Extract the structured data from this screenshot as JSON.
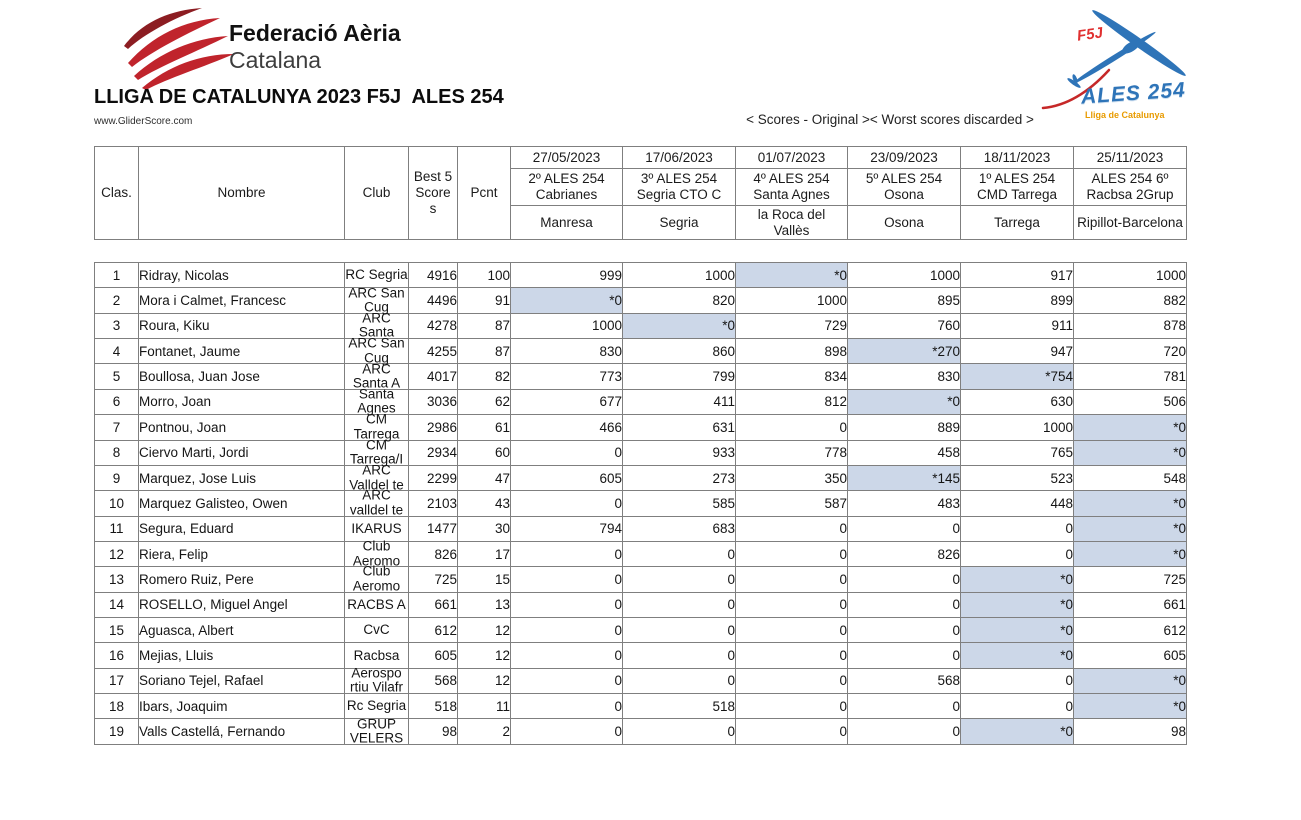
{
  "header": {
    "federation_line1": "Federació Aèria",
    "federation_line2": "Catalana",
    "title": "LLIGA DE CATALUNYA 2023 F5J  ALES 254",
    "website": "www.GliderScore.com",
    "scores_note": "< Scores - Original >< Worst scores discarded >"
  },
  "logo_right": {
    "f5j": "F5J",
    "ales": "ALES 254",
    "subtitle": "Lliga de Catalunya"
  },
  "columns": {
    "clas": "Clas.",
    "nombre": "Nombre",
    "club": "Club",
    "best5": "Best 5 Scores",
    "pcnt": "Pcnt"
  },
  "colors": {
    "discarded_highlight": "#ccd7e8",
    "table_border": "#7f7f7f",
    "logo_red": "#c0242c",
    "glider_blue": "#2e74b8",
    "subtitle_orange": "#e89b00"
  },
  "events": [
    {
      "date": "27/05/2023",
      "name": "2º ALES 254 Cabrianes",
      "location": "Manresa"
    },
    {
      "date": "17/06/2023",
      "name": "3º ALES 254 Segria CTO C",
      "location": "Segria"
    },
    {
      "date": "01/07/2023",
      "name": "4º ALES 254 Santa Agnes",
      "location": "la Roca del Vallès"
    },
    {
      "date": "23/09/2023",
      "name": "5º ALES 254 Osona",
      "location": "Osona"
    },
    {
      "date": "18/11/2023",
      "name": "1º ALES 254 CMD Tarrega",
      "location": "Tarrega"
    },
    {
      "date": "25/11/2023",
      "name": "ALES 254 6º Racbsa 2Grup",
      "location": "Ripillot-Barcelona"
    }
  ],
  "rows": [
    {
      "clas": "1",
      "nombre": "Ridray, Nicolas",
      "club": "RC Segria",
      "best5": "4916",
      "pcnt": "100",
      "scores": [
        {
          "v": "999",
          "d": false
        },
        {
          "v": "1000",
          "d": false
        },
        {
          "v": "*0",
          "d": true
        },
        {
          "v": "1000",
          "d": false
        },
        {
          "v": "917",
          "d": false
        },
        {
          "v": "1000",
          "d": false
        }
      ]
    },
    {
      "clas": "2",
      "nombre": "Mora i Calmet, Francesc",
      "club": "ARC San Cug",
      "best5": "4496",
      "pcnt": "91",
      "scores": [
        {
          "v": "*0",
          "d": true
        },
        {
          "v": "820",
          "d": false
        },
        {
          "v": "1000",
          "d": false
        },
        {
          "v": "895",
          "d": false
        },
        {
          "v": "899",
          "d": false
        },
        {
          "v": "882",
          "d": false
        }
      ]
    },
    {
      "clas": "3",
      "nombre": "Roura, Kiku",
      "club": "ARC Santa",
      "best5": "4278",
      "pcnt": "87",
      "scores": [
        {
          "v": "1000",
          "d": false
        },
        {
          "v": "*0",
          "d": true
        },
        {
          "v": "729",
          "d": false
        },
        {
          "v": "760",
          "d": false
        },
        {
          "v": "911",
          "d": false
        },
        {
          "v": "878",
          "d": false
        }
      ]
    },
    {
      "clas": "4",
      "nombre": "Fontanet, Jaume",
      "club": "ARC San Cug",
      "best5": "4255",
      "pcnt": "87",
      "scores": [
        {
          "v": "830",
          "d": false
        },
        {
          "v": "860",
          "d": false
        },
        {
          "v": "898",
          "d": false
        },
        {
          "v": "*270",
          "d": true
        },
        {
          "v": "947",
          "d": false
        },
        {
          "v": "720",
          "d": false
        }
      ]
    },
    {
      "clas": "5",
      "nombre": "Boullosa, Juan Jose",
      "club": "ARC Santa A",
      "best5": "4017",
      "pcnt": "82",
      "scores": [
        {
          "v": "773",
          "d": false
        },
        {
          "v": "799",
          "d": false
        },
        {
          "v": "834",
          "d": false
        },
        {
          "v": "830",
          "d": false
        },
        {
          "v": "*754",
          "d": true
        },
        {
          "v": "781",
          "d": false
        }
      ]
    },
    {
      "clas": "6",
      "nombre": "Morro, Joan",
      "club": "Santa Agnes",
      "best5": "3036",
      "pcnt": "62",
      "scores": [
        {
          "v": "677",
          "d": false
        },
        {
          "v": "411",
          "d": false
        },
        {
          "v": "812",
          "d": false
        },
        {
          "v": "*0",
          "d": true
        },
        {
          "v": "630",
          "d": false
        },
        {
          "v": "506",
          "d": false
        }
      ]
    },
    {
      "clas": "7",
      "nombre": "Pontnou, Joan",
      "club": "CM Tarrega",
      "best5": "2986",
      "pcnt": "61",
      "scores": [
        {
          "v": "466",
          "d": false
        },
        {
          "v": "631",
          "d": false
        },
        {
          "v": "0",
          "d": false
        },
        {
          "v": "889",
          "d": false
        },
        {
          "v": "1000",
          "d": false
        },
        {
          "v": "*0",
          "d": true
        }
      ]
    },
    {
      "clas": "8",
      "nombre": "Ciervo Marti, Jordi",
      "club": "CM Tarrega/I",
      "best5": "2934",
      "pcnt": "60",
      "scores": [
        {
          "v": "0",
          "d": false
        },
        {
          "v": "933",
          "d": false
        },
        {
          "v": "778",
          "d": false
        },
        {
          "v": "458",
          "d": false
        },
        {
          "v": "765",
          "d": false
        },
        {
          "v": "*0",
          "d": true
        }
      ]
    },
    {
      "clas": "9",
      "nombre": "Marquez, Jose Luis",
      "club": "ARC Valldel te",
      "best5": "2299",
      "pcnt": "47",
      "scores": [
        {
          "v": "605",
          "d": false
        },
        {
          "v": "273",
          "d": false
        },
        {
          "v": "350",
          "d": false
        },
        {
          "v": "*145",
          "d": true
        },
        {
          "v": "523",
          "d": false
        },
        {
          "v": "548",
          "d": false
        }
      ]
    },
    {
      "clas": "10",
      "nombre": "Marquez Galisteo, Owen",
      "club": "ARC valldel te",
      "best5": "2103",
      "pcnt": "43",
      "scores": [
        {
          "v": "0",
          "d": false
        },
        {
          "v": "585",
          "d": false
        },
        {
          "v": "587",
          "d": false
        },
        {
          "v": "483",
          "d": false
        },
        {
          "v": "448",
          "d": false
        },
        {
          "v": "*0",
          "d": true
        }
      ]
    },
    {
      "clas": "11",
      "nombre": "Segura, Eduard",
      "club": "IKARUS",
      "best5": "1477",
      "pcnt": "30",
      "scores": [
        {
          "v": "794",
          "d": false
        },
        {
          "v": "683",
          "d": false
        },
        {
          "v": "0",
          "d": false
        },
        {
          "v": "0",
          "d": false
        },
        {
          "v": "0",
          "d": false
        },
        {
          "v": "*0",
          "d": true
        }
      ]
    },
    {
      "clas": "12",
      "nombre": "Riera, Felip",
      "club": "Club Aeromo",
      "best5": "826",
      "pcnt": "17",
      "scores": [
        {
          "v": "0",
          "d": false
        },
        {
          "v": "0",
          "d": false
        },
        {
          "v": "0",
          "d": false
        },
        {
          "v": "826",
          "d": false
        },
        {
          "v": "0",
          "d": false
        },
        {
          "v": "*0",
          "d": true
        }
      ]
    },
    {
      "clas": "13",
      "nombre": "Romero Ruiz, Pere",
      "club": "Club Aeromo",
      "best5": "725",
      "pcnt": "15",
      "scores": [
        {
          "v": "0",
          "d": false
        },
        {
          "v": "0",
          "d": false
        },
        {
          "v": "0",
          "d": false
        },
        {
          "v": "0",
          "d": false
        },
        {
          "v": "*0",
          "d": true
        },
        {
          "v": "725",
          "d": false
        }
      ]
    },
    {
      "clas": "14",
      "nombre": "ROSELLO, Miguel Angel",
      "club": "RACBS A",
      "best5": "661",
      "pcnt": "13",
      "scores": [
        {
          "v": "0",
          "d": false
        },
        {
          "v": "0",
          "d": false
        },
        {
          "v": "0",
          "d": false
        },
        {
          "v": "0",
          "d": false
        },
        {
          "v": "*0",
          "d": true
        },
        {
          "v": "661",
          "d": false
        }
      ]
    },
    {
      "clas": "15",
      "nombre": "Aguasca, Albert",
      "club": "CvC",
      "best5": "612",
      "pcnt": "12",
      "scores": [
        {
          "v": "0",
          "d": false
        },
        {
          "v": "0",
          "d": false
        },
        {
          "v": "0",
          "d": false
        },
        {
          "v": "0",
          "d": false
        },
        {
          "v": "*0",
          "d": true
        },
        {
          "v": "612",
          "d": false
        }
      ]
    },
    {
      "clas": "16",
      "nombre": "Mejias, Lluis",
      "club": "Racbsa",
      "best5": "605",
      "pcnt": "12",
      "scores": [
        {
          "v": "0",
          "d": false
        },
        {
          "v": "0",
          "d": false
        },
        {
          "v": "0",
          "d": false
        },
        {
          "v": "0",
          "d": false
        },
        {
          "v": "*0",
          "d": true
        },
        {
          "v": "605",
          "d": false
        }
      ]
    },
    {
      "clas": "17",
      "nombre": "Soriano Tejel, Rafael",
      "club": "Aerospo rtiu Vilafr",
      "best5": "568",
      "pcnt": "12",
      "scores": [
        {
          "v": "0",
          "d": false
        },
        {
          "v": "0",
          "d": false
        },
        {
          "v": "0",
          "d": false
        },
        {
          "v": "568",
          "d": false
        },
        {
          "v": "0",
          "d": false
        },
        {
          "v": "*0",
          "d": true
        }
      ]
    },
    {
      "clas": "18",
      "nombre": "Ibars, Joaquim",
      "club": "Rc Segria",
      "best5": "518",
      "pcnt": "11",
      "scores": [
        {
          "v": "0",
          "d": false
        },
        {
          "v": "518",
          "d": false
        },
        {
          "v": "0",
          "d": false
        },
        {
          "v": "0",
          "d": false
        },
        {
          "v": "0",
          "d": false
        },
        {
          "v": "*0",
          "d": true
        }
      ]
    },
    {
      "clas": "19",
      "nombre": "Valls Castellá, Fernando",
      "club": "GRUP VELERS",
      "best5": "98",
      "pcnt": "2",
      "scores": [
        {
          "v": "0",
          "d": false
        },
        {
          "v": "0",
          "d": false
        },
        {
          "v": "0",
          "d": false
        },
        {
          "v": "0",
          "d": false
        },
        {
          "v": "*0",
          "d": true
        },
        {
          "v": "98",
          "d": false
        }
      ]
    }
  ]
}
